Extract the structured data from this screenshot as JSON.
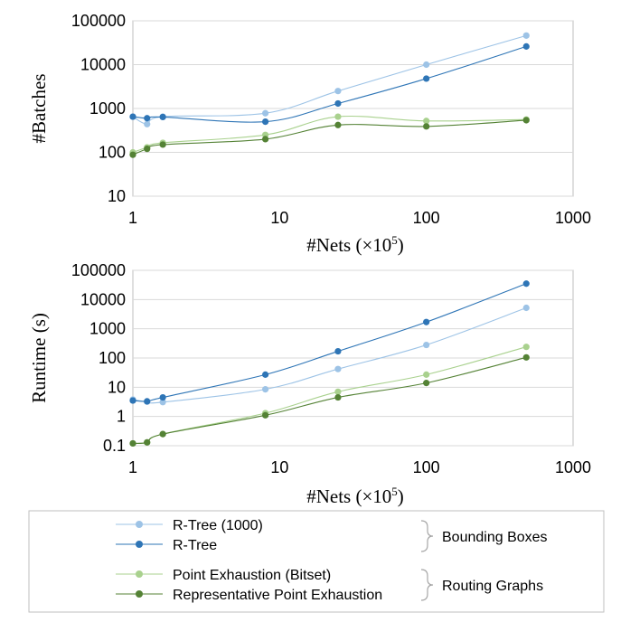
{
  "colors": {
    "rtree1000": "#9dc3e6",
    "rtree": "#2e75b6",
    "pe_bitset": "#a9d18e",
    "rpe": "#548235",
    "grid": "#d9d9d9",
    "axis": "#bfbfbf",
    "legend_border": "#bfbfbf"
  },
  "legend": {
    "items": [
      {
        "label": "R-Tree (1000)",
        "series": "rtree1000"
      },
      {
        "label": "R-Tree",
        "series": "rtree"
      },
      {
        "label": "Point Exhaustion (Bitset)",
        "series": "pe_bitset"
      },
      {
        "label": "Representative Point Exhaustion",
        "series": "rpe"
      }
    ],
    "groups": [
      {
        "label": "Bounding Boxes"
      },
      {
        "label": "Routing Graphs"
      }
    ]
  },
  "chart_data": [
    {
      "type": "line",
      "ylabel": "#Batches",
      "xlabel_main": "#Nets (×10",
      "xlabel_sup": "5",
      "xlabel_close": ")",
      "x_scale": "log",
      "y_scale": "log",
      "xlim": [
        1,
        1000
      ],
      "ylim": [
        10,
        100000
      ],
      "x_ticks": [
        "1",
        "10",
        "100",
        "1000"
      ],
      "y_ticks": [
        "10",
        "100",
        "1000",
        "10000",
        "100000"
      ],
      "grid": true,
      "x": [
        1,
        1.25,
        1.6,
        8,
        25,
        100,
        480
      ],
      "series": [
        {
          "name": "R-Tree (1000)",
          "key": "rtree1000",
          "values": [
            650,
            440,
            650,
            780,
            2500,
            10000,
            46000
          ]
        },
        {
          "name": "R-Tree",
          "key": "rtree",
          "values": [
            650,
            600,
            640,
            500,
            1300,
            4800,
            26000
          ]
        },
        {
          "name": "Point Exhaustion (Bitset)",
          "key": "pe_bitset",
          "values": [
            100,
            130,
            165,
            250,
            650,
            520,
            560
          ]
        },
        {
          "name": "Representative Point Exhaustion",
          "key": "rpe",
          "values": [
            88,
            120,
            150,
            200,
            420,
            390,
            540
          ]
        }
      ]
    },
    {
      "type": "line",
      "ylabel": "Runtime (s)",
      "xlabel_main": "#Nets (×10",
      "xlabel_sup": "5",
      "xlabel_close": ")",
      "x_scale": "log",
      "y_scale": "log",
      "xlim": [
        1,
        1000
      ],
      "ylim": [
        0.1,
        100000
      ],
      "x_ticks": [
        "1",
        "10",
        "100",
        "1000"
      ],
      "y_ticks": [
        "0.1",
        "1",
        "10",
        "100",
        "1000",
        "10000",
        "100000"
      ],
      "grid": true,
      "x": [
        1,
        1.25,
        1.6,
        8,
        25,
        100,
        480
      ],
      "series": [
        {
          "name": "R-Tree (1000)",
          "key": "rtree1000",
          "values": [
            3.8,
            3.2,
            3.1,
            8.5,
            42,
            280,
            5200
          ]
        },
        {
          "name": "R-Tree",
          "key": "rtree",
          "values": [
            3.5,
            3.3,
            4.5,
            27,
            170,
            1700,
            35000
          ]
        },
        {
          "name": "Point Exhaustion (Bitset)",
          "key": "pe_bitset",
          "values": [
            0.12,
            0.13,
            0.25,
            1.3,
            7,
            27,
            240
          ]
        },
        {
          "name": "Representative Point Exhaustion",
          "key": "rpe",
          "values": [
            0.12,
            0.13,
            0.25,
            1.1,
            4.5,
            14,
            105
          ]
        }
      ]
    }
  ]
}
